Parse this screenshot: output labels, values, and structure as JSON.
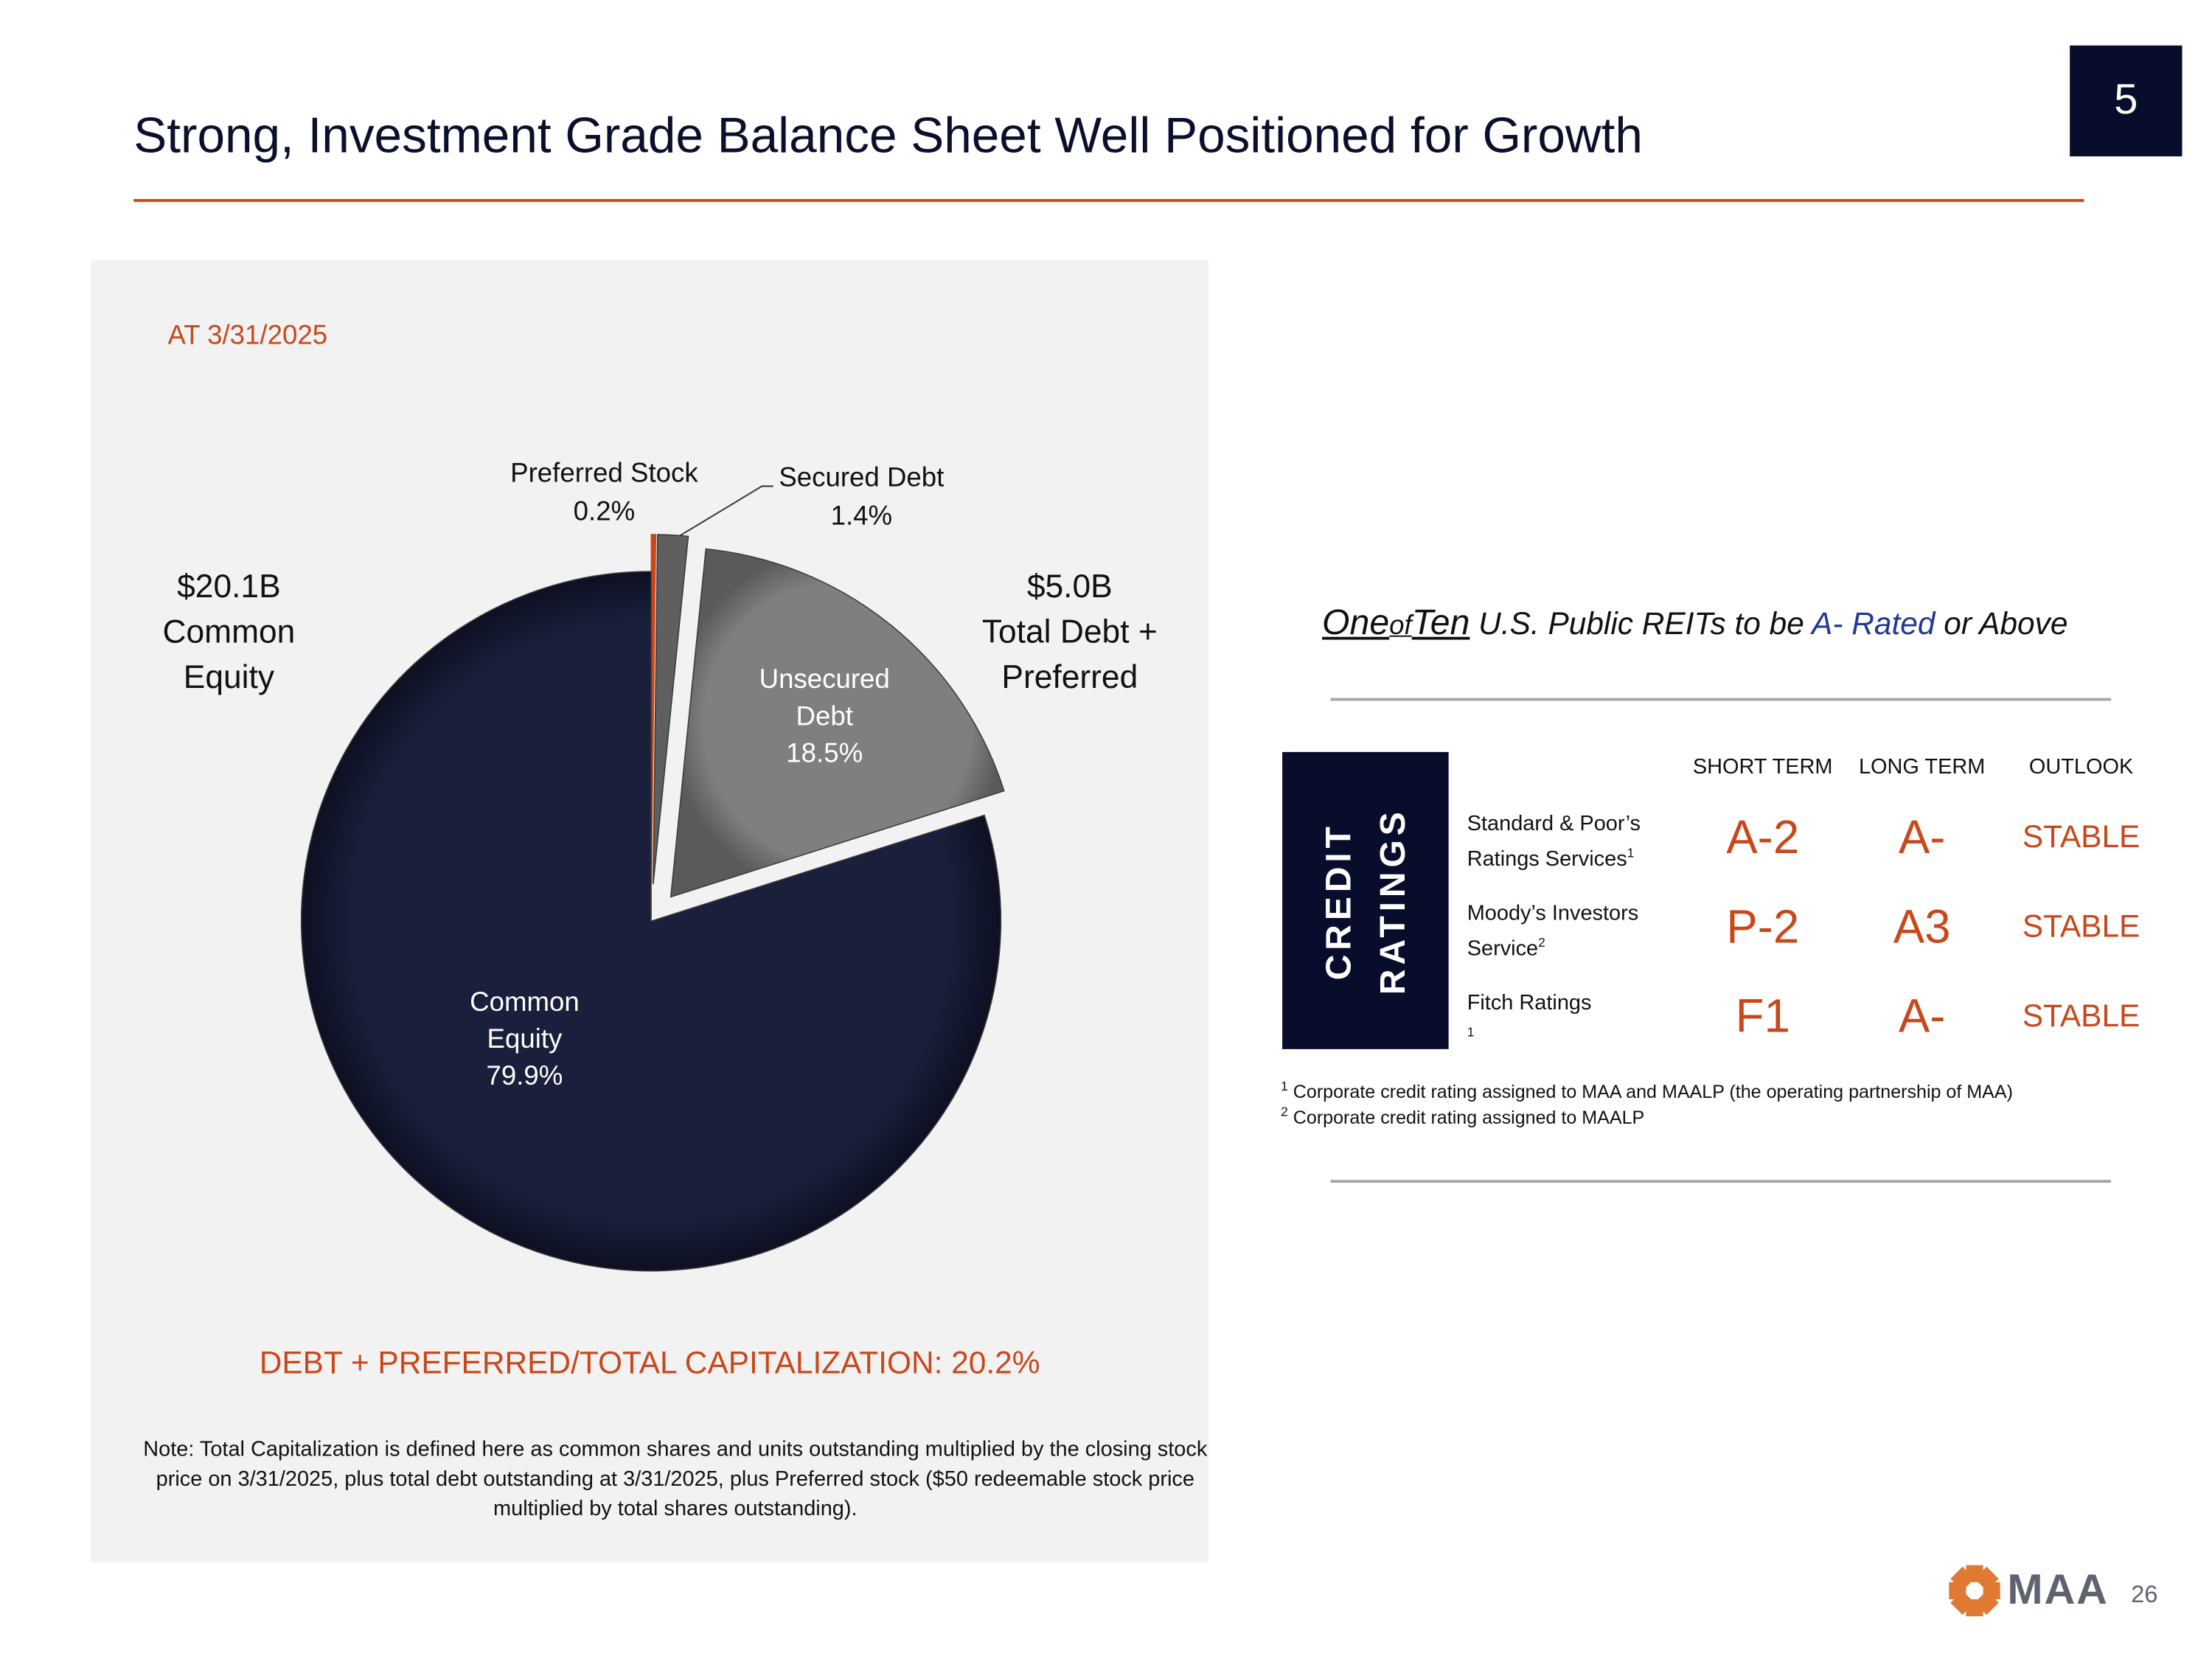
{
  "slide": {
    "title": "Strong, Investment Grade Balance Sheet Well Positioned for Growth",
    "section_number": "5",
    "page_number": "26",
    "logo_text": "MAA"
  },
  "colors": {
    "accent": "#c8481c",
    "navy": "#070d2b",
    "equity": "#1a1f3b",
    "unsecured": "#7f807e",
    "secured": "#5e5f5e",
    "preferred": "#c8481c",
    "blue": "#1f3a93"
  },
  "chart_data": {
    "type": "pie",
    "title": "AT 3/31/2025",
    "slices": [
      {
        "name": "Preferred Stock",
        "value": 0.2,
        "label": "0.2%",
        "exploded": true
      },
      {
        "name": "Secured Debt",
        "value": 1.4,
        "label": "1.4%",
        "exploded": true
      },
      {
        "name": "Unsecured Debt",
        "value": 18.5,
        "label": "18.5%",
        "exploded": true
      },
      {
        "name": "Common Equity",
        "value": 79.9,
        "label": "79.9%",
        "exploded": false
      }
    ],
    "annotations": {
      "equity_total": [
        "$20.1B",
        "Common",
        "Equity"
      ],
      "debt_total": [
        "$5.0B",
        "Total Debt +",
        "Preferred"
      ]
    },
    "label_lines": {
      "preferred": "Preferred Stock",
      "secured": "Secured Debt",
      "unsecured": [
        "Unsecured",
        "Debt"
      ],
      "equity": [
        "Common",
        "Equity"
      ]
    }
  },
  "summary_ratio": "DEBT + PREFERRED/TOTAL CAPITALIZATION: 20.2%",
  "note": "Note: Total Capitalization is defined here as common shares and units outstanding multiplied by the closing stock price on 3/31/2025, plus total debt outstanding at 3/31/2025, plus Preferred stock ($50 redeemable stock price multiplied by total shares outstanding).",
  "tagline": {
    "part1": "One",
    "part2": "of",
    "part3": "Ten",
    "part4": " U.S. Public REITs to be ",
    "part5": "A- Rated",
    "part6": " or Above"
  },
  "ratings": {
    "box_label": [
      "CREDIT",
      "RATINGS"
    ],
    "columns": [
      "SHORT TERM",
      "LONG TERM",
      "OUTLOOK"
    ],
    "rows": [
      {
        "agency": [
          "Standard & Poor’s",
          "Ratings Services"
        ],
        "sup": "1",
        "short": "A-2",
        "long": "A-",
        "outlook": "STABLE"
      },
      {
        "agency": [
          "Moody’s Investors",
          "Service"
        ],
        "sup": "2",
        "short": "P-2",
        "long": "A3",
        "outlook": "STABLE"
      },
      {
        "agency": [
          "Fitch Ratings",
          ""
        ],
        "sup": "1",
        "short": "F1",
        "long": "A-",
        "outlook": "STABLE"
      }
    ],
    "footnotes": [
      {
        "mark": "1",
        "text": "Corporate credit rating assigned to MAA and MAALP (the operating partnership of MAA)"
      },
      {
        "mark": "2",
        "text": "Corporate credit rating assigned to MAALP"
      }
    ]
  }
}
